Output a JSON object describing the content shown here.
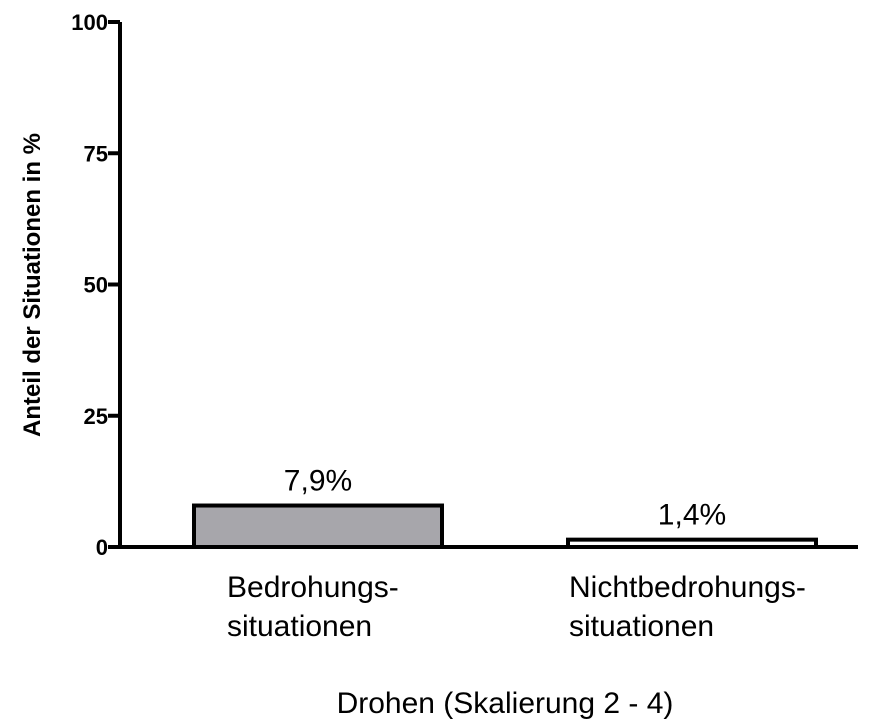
{
  "chart_data": {
    "type": "bar",
    "categories": [
      [
        "Bedrohungs-",
        "situationen"
      ],
      [
        "Nichtbedrohungs-",
        "situationen"
      ]
    ],
    "values": [
      7.9,
      1.4
    ],
    "data_labels": [
      "7,9%",
      "1,4%"
    ],
    "bar_colors": [
      "#a7a6ab",
      "#ffffff"
    ],
    "xlabel": "Drohen (Skalierung 2 - 4)",
    "ylabel": "Anteil der Situationen in %",
    "ylim": [
      0,
      100
    ],
    "yticks": [
      0,
      25,
      50,
      75,
      100
    ],
    "ytick_labels": [
      "0",
      "25",
      "50",
      "75",
      "100"
    ],
    "grid": false,
    "legend": "none"
  }
}
